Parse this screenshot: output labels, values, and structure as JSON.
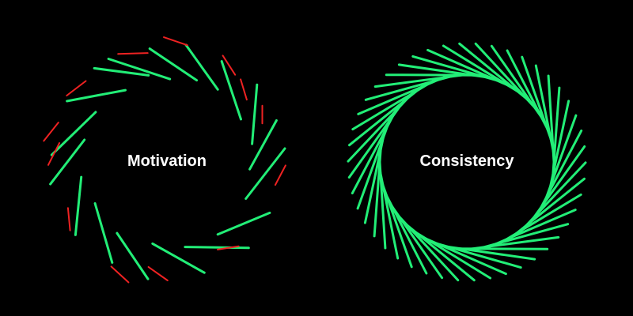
{
  "left_ring": {
    "label": "Motivation",
    "stroke_color": "#22ee77",
    "accent_color": "#ee2222"
  },
  "right_ring": {
    "label": "Consistency",
    "stroke_color": "#22ee77"
  },
  "background_color": "#000000"
}
